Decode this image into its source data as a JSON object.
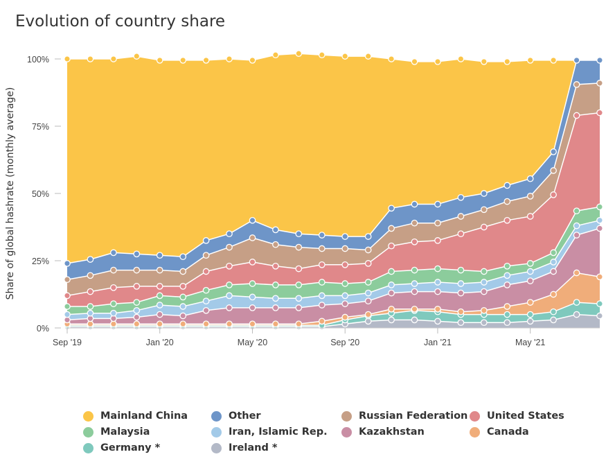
{
  "title": "Evolution of country share",
  "chart_data": {
    "type": "area",
    "stacked": true,
    "title": "Evolution of country share",
    "xlabel": "",
    "ylabel": "Share of global hashrate (monthly average)",
    "ylim": [
      0,
      100
    ],
    "y_ticks": [
      "0%",
      "25%",
      "50%",
      "75%",
      "100%"
    ],
    "x_tick_labels": [
      "Sep '19",
      "Jan '20",
      "May '20",
      "Sep '20",
      "Jan '21",
      "May '21"
    ],
    "x": [
      "2019-09",
      "2019-10",
      "2019-11",
      "2019-12",
      "2020-01",
      "2020-02",
      "2020-03",
      "2020-04",
      "2020-05",
      "2020-06",
      "2020-07",
      "2020-08",
      "2020-09",
      "2020-10",
      "2020-11",
      "2020-12",
      "2021-01",
      "2021-02",
      "2021-03",
      "2021-04",
      "2021-05",
      "2021-06",
      "2021-07",
      "2021-08"
    ],
    "grid": false,
    "legend_position": "bottom",
    "series": [
      {
        "name": "Ireland *",
        "color": "#b3b9c7",
        "values": [
          0.5,
          0.5,
          0.5,
          0.5,
          0.5,
          0.5,
          0.5,
          0.5,
          0.5,
          0.5,
          0.5,
          0.5,
          1.5,
          2.5,
          3,
          3,
          2.5,
          2,
          2,
          2,
          2.5,
          3,
          5,
          4.5
        ]
      },
      {
        "name": "Germany *",
        "color": "#7fc9bd",
        "values": [
          0.5,
          0.5,
          0.5,
          0.5,
          0.5,
          0.5,
          0.5,
          0.5,
          0.5,
          0.5,
          0.5,
          0.5,
          1.5,
          2,
          2.5,
          3.5,
          3.5,
          3,
          3,
          3,
          2.5,
          3,
          4.5,
          4.5
        ]
      },
      {
        "name": "Canada",
        "color": "#f0ad7a",
        "values": [
          0.5,
          0.5,
          0.5,
          0.5,
          0.5,
          0.5,
          0.5,
          0.5,
          0.5,
          0.5,
          0.5,
          1.5,
          1,
          0.5,
          1.5,
          0.5,
          1,
          1,
          1.5,
          3,
          4.5,
          6.5,
          11,
          10
        ]
      },
      {
        "name": "Kazakhstan",
        "color": "#c98ea4",
        "values": [
          1.5,
          2,
          2,
          2.5,
          3.5,
          3,
          5,
          6,
          6,
          6,
          6,
          6,
          5,
          5,
          6,
          6.5,
          6.5,
          7,
          7,
          8,
          8,
          8.5,
          14,
          18
        ]
      },
      {
        "name": "Iran, Islamic Rep.",
        "color": "#a3cae8",
        "values": [
          2,
          2,
          2,
          2.5,
          3.5,
          3.5,
          3.5,
          4.5,
          4,
          3.5,
          3.5,
          3.5,
          3,
          3,
          3,
          3,
          3.5,
          3.5,
          3.5,
          3.5,
          3.5,
          3.5,
          3.5,
          3
        ]
      },
      {
        "name": "Malaysia",
        "color": "#8ccc9c",
        "values": [
          3,
          2.5,
          3.5,
          3,
          3.5,
          3.5,
          4,
          4,
          5,
          5,
          5,
          5,
          4.5,
          4,
          5,
          5,
          5,
          5,
          4,
          3.5,
          3,
          3.5,
          5.5,
          5
        ]
      },
      {
        "name": "United States",
        "color": "#e0888a",
        "values": [
          4,
          5.5,
          6,
          6,
          3.5,
          4,
          7,
          7,
          8,
          7,
          6,
          6.5,
          7,
          7,
          9.5,
          10.5,
          10.5,
          13.5,
          16.5,
          17,
          17.5,
          21.5,
          35.5,
          35
        ]
      },
      {
        "name": "Russian Federation",
        "color": "#c69f86",
        "values": [
          6,
          6,
          6.5,
          6,
          6,
          5.5,
          6,
          7,
          9,
          8,
          8,
          6,
          6,
          5,
          6.5,
          7,
          6.5,
          6.5,
          6.5,
          7,
          7.5,
          9,
          11.5,
          11
        ]
      },
      {
        "name": "Other",
        "color": "#6e95c8",
        "values": [
          6,
          6,
          6.5,
          6,
          5.5,
          5.5,
          5.5,
          5,
          6.5,
          5.5,
          5,
          5,
          4.5,
          5,
          7.5,
          7,
          7,
          7,
          6,
          6,
          6.5,
          7,
          9,
          8.5
        ]
      },
      {
        "name": "Mainland China",
        "color": "#fbc548",
        "values": [
          76,
          74.5,
          72,
          73.5,
          72.5,
          73,
          67,
          65,
          59.5,
          65,
          67,
          67,
          67,
          67,
          55.5,
          53,
          53,
          51.5,
          49,
          46,
          44,
          34,
          0,
          0
        ]
      }
    ],
    "legend_order": [
      "Mainland China",
      "Other",
      "Russian Federation",
      "United States",
      "Malaysia",
      "Iran, Islamic Rep.",
      "Kazakhstan",
      "Canada",
      "Germany *",
      "Ireland *"
    ]
  }
}
